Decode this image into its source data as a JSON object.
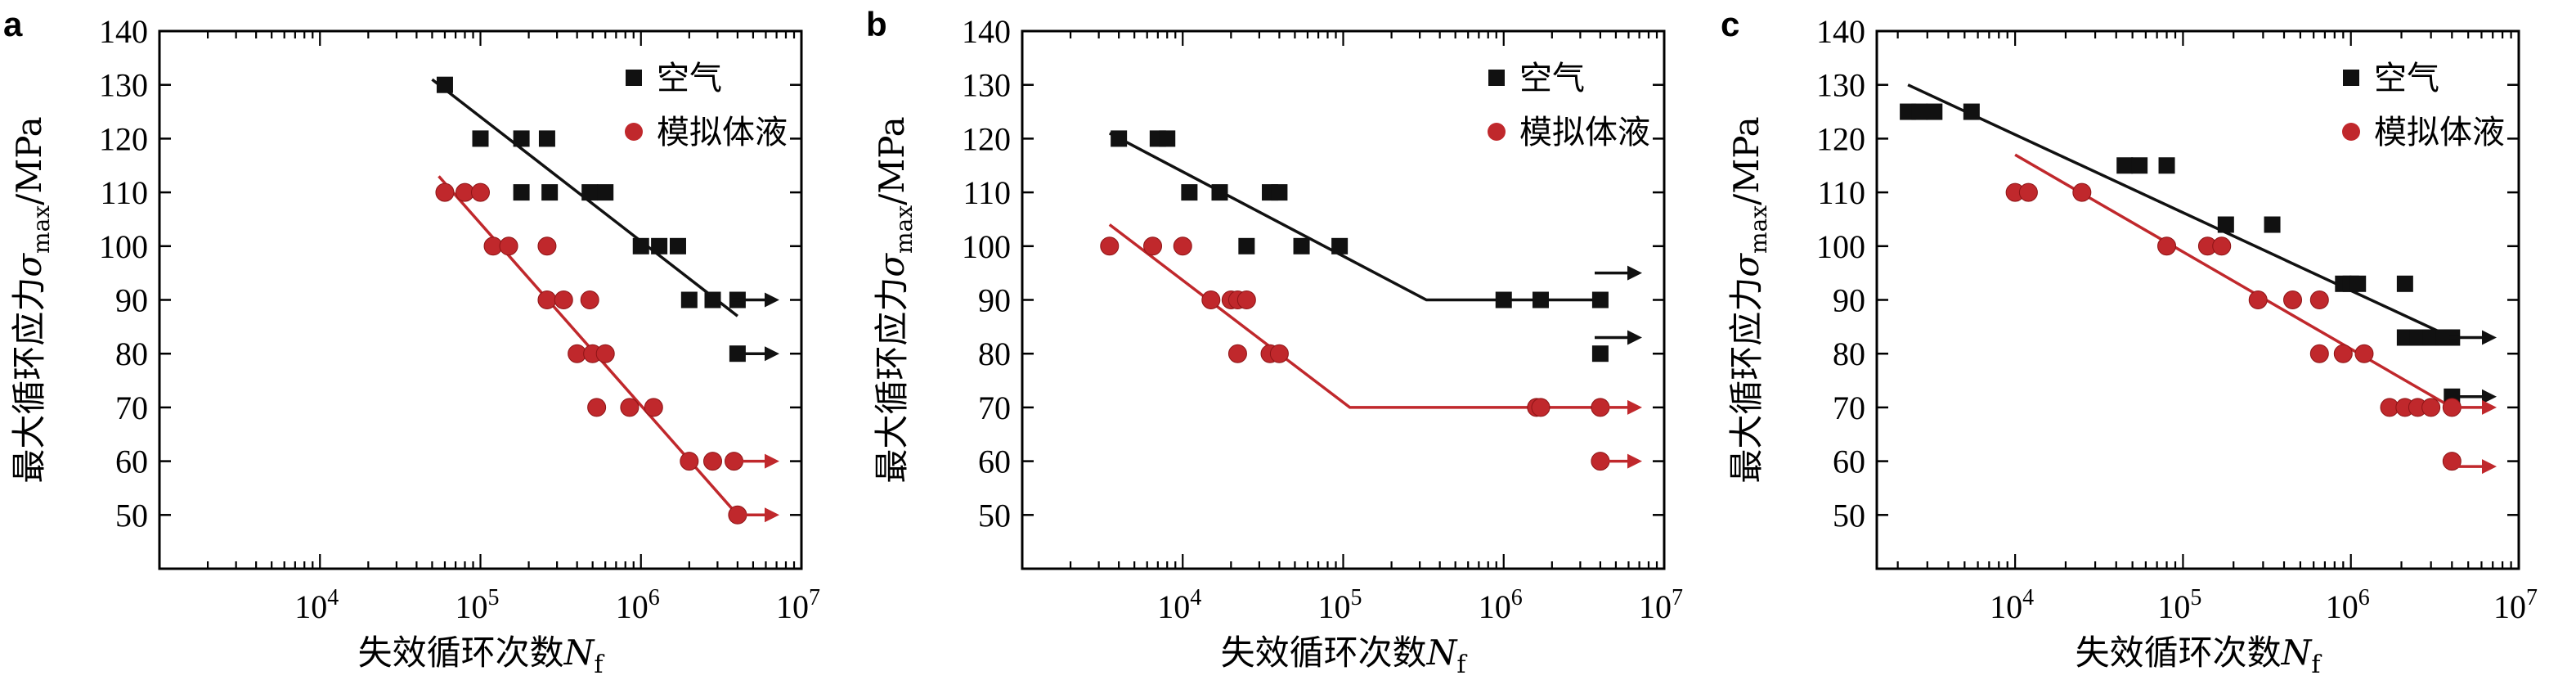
{
  "chart_data": [
    {
      "type": "scatter",
      "panel_label": "a",
      "xlabel_text": "失效循环次数",
      "xlabel_symbol": "N",
      "xlabel_sub": "f",
      "ylabel_text": "最大循环应力",
      "ylabel_symbol": "σ",
      "ylabel_sub": "max",
      "ylabel_unit": "/MPa",
      "x_scale": "log",
      "xlim": [
        1000,
        10000000
      ],
      "ylim": [
        40,
        140
      ],
      "x_tick_labels": [
        "10",
        "10",
        "10",
        "10"
      ],
      "x_tick_exps": [
        "4",
        "5",
        "6",
        "7"
      ],
      "x_ticks": [
        10000,
        100000,
        1000000,
        10000000
      ],
      "y_ticks": [
        50,
        60,
        70,
        80,
        90,
        100,
        110,
        120,
        130,
        140
      ],
      "y_tick_labels": [
        "50",
        "60",
        "70",
        "80",
        "90",
        "100",
        "110",
        "120",
        "130",
        "140"
      ],
      "legend_position": "top-right",
      "series": [
        {
          "name": "空气",
          "color": "#111111",
          "marker": "square",
          "points": [
            [
              60000,
              130
            ],
            [
              100000,
              120
            ],
            [
              180000,
              120
            ],
            [
              260000,
              120
            ],
            [
              180000,
              110
            ],
            [
              270000,
              110
            ],
            [
              480000,
              110
            ],
            [
              600000,
              110
            ],
            [
              1000000,
              100
            ],
            [
              1300000,
              100
            ],
            [
              1700000,
              100
            ],
            [
              2000000,
              90
            ],
            [
              2800000,
              90
            ],
            [
              4000000,
              90
            ],
            [
              4000000,
              80
            ]
          ],
          "fit": [
            [
              50000,
              131
            ],
            [
              4000000,
              87
            ]
          ],
          "runouts": [
            90,
            80
          ]
        },
        {
          "name": "模拟体液",
          "color": "#c0282c",
          "marker": "circle",
          "points": [
            [
              60000,
              110
            ],
            [
              80000,
              110
            ],
            [
              100000,
              110
            ],
            [
              120000,
              100
            ],
            [
              150000,
              100
            ],
            [
              260000,
              100
            ],
            [
              260000,
              90
            ],
            [
              330000,
              90
            ],
            [
              480000,
              90
            ],
            [
              400000,
              80
            ],
            [
              500000,
              80
            ],
            [
              600000,
              80
            ],
            [
              530000,
              70
            ],
            [
              850000,
              70
            ],
            [
              1200000,
              70
            ],
            [
              2000000,
              60
            ],
            [
              2800000,
              60
            ],
            [
              3800000,
              60
            ],
            [
              4000000,
              50
            ]
          ],
          "fit": [
            [
              55000,
              113
            ],
            [
              4000000,
              50
            ]
          ],
          "runouts": [
            60,
            50
          ]
        }
      ]
    },
    {
      "type": "scatter",
      "panel_label": "b",
      "xlabel_text": "失效循环次数",
      "xlabel_symbol": "N",
      "xlabel_sub": "f",
      "ylabel_text": "最大循环应力",
      "ylabel_symbol": "σ",
      "ylabel_sub": "max",
      "ylabel_unit": "/MPa",
      "x_scale": "log",
      "xlim": [
        1000,
        10000000
      ],
      "ylim": [
        40,
        140
      ],
      "x_tick_labels": [
        "10",
        "10",
        "10",
        "10"
      ],
      "x_tick_exps": [
        "4",
        "5",
        "6",
        "7"
      ],
      "x_ticks": [
        10000,
        100000,
        1000000,
        10000000
      ],
      "y_ticks": [
        50,
        60,
        70,
        80,
        90,
        100,
        110,
        120,
        130,
        140
      ],
      "y_tick_labels": [
        "50",
        "60",
        "70",
        "80",
        "90",
        "100",
        "110",
        "120",
        "130",
        "140"
      ],
      "legend_position": "top-right",
      "series": [
        {
          "name": "空气",
          "color": "#111111",
          "marker": "square",
          "points": [
            [
              4000,
              120
            ],
            [
              7000,
              120
            ],
            [
              8000,
              120
            ],
            [
              11000,
              110
            ],
            [
              17000,
              110
            ],
            [
              35000,
              110
            ],
            [
              40000,
              110
            ],
            [
              25000,
              100
            ],
            [
              55000,
              100
            ],
            [
              95000,
              100
            ],
            [
              1000000,
              90
            ],
            [
              1700000,
              90
            ],
            [
              4000000,
              90
            ],
            [
              4000000,
              80
            ]
          ],
          "fit": [
            [
              3500,
              121
            ],
            [
              330000,
              90
            ],
            [
              4000000,
              90
            ]
          ],
          "runouts": [
            95,
            83
          ]
        },
        {
          "name": "模拟体液",
          "color": "#c0282c",
          "marker": "circle",
          "points": [
            [
              3500,
              100
            ],
            [
              6500,
              100
            ],
            [
              10000,
              100
            ],
            [
              15000,
              90
            ],
            [
              20000,
              90
            ],
            [
              22000,
              90
            ],
            [
              25000,
              90
            ],
            [
              22000,
              80
            ],
            [
              35000,
              80
            ],
            [
              40000,
              80
            ],
            [
              1600000,
              70
            ],
            [
              1700000,
              70
            ],
            [
              4000000,
              70
            ],
            [
              4000000,
              60
            ]
          ],
          "fit": [
            [
              3500,
              104
            ],
            [
              110000,
              70
            ],
            [
              4000000,
              70
            ]
          ],
          "runouts": [
            70,
            60
          ]
        }
      ]
    },
    {
      "type": "scatter",
      "panel_label": "c",
      "xlabel_text": "失效循环次数",
      "xlabel_symbol": "N",
      "xlabel_sub": "f",
      "ylabel_text": "最大循环应力",
      "ylabel_symbol": "σ",
      "ylabel_sub": "max",
      "ylabel_unit": "/MPa",
      "x_scale": "log",
      "xlim": [
        1500,
        10000000
      ],
      "ylim": [
        40,
        140
      ],
      "x_tick_labels": [
        "10",
        "10",
        "10",
        "10"
      ],
      "x_tick_exps": [
        "4",
        "5",
        "6",
        "7"
      ],
      "x_ticks": [
        10000,
        100000,
        1000000,
        10000000
      ],
      "y_ticks": [
        50,
        60,
        70,
        80,
        90,
        100,
        110,
        120,
        130,
        140
      ],
      "y_tick_labels": [
        "50",
        "60",
        "70",
        "80",
        "90",
        "100",
        "110",
        "120",
        "130",
        "140"
      ],
      "legend_position": "top-right",
      "series": [
        {
          "name": "空气",
          "color": "#111111",
          "marker": "square",
          "points": [
            [
              2300,
              125
            ],
            [
              2700,
              125
            ],
            [
              3300,
              125
            ],
            [
              5500,
              125
            ],
            [
              45000,
              115
            ],
            [
              55000,
              115
            ],
            [
              80000,
              115
            ],
            [
              180000,
              104
            ],
            [
              340000,
              104
            ],
            [
              900000,
              93
            ],
            [
              1000000,
              93
            ],
            [
              1100000,
              93
            ],
            [
              2100000,
              93
            ],
            [
              2100000,
              83
            ],
            [
              2500000,
              83
            ],
            [
              3000000,
              83
            ],
            [
              3600000,
              83
            ],
            [
              4000000,
              83
            ],
            [
              4000000,
              72
            ]
          ],
          "fit": [
            [
              2300,
              130
            ],
            [
              4000000,
              83
            ]
          ],
          "runouts": [
            83,
            72
          ]
        },
        {
          "name": "模拟体液",
          "color": "#c0282c",
          "marker": "circle",
          "points": [
            [
              10000,
              110
            ],
            [
              12000,
              110
            ],
            [
              25000,
              110
            ],
            [
              80000,
              100
            ],
            [
              140000,
              100
            ],
            [
              170000,
              100
            ],
            [
              280000,
              90
            ],
            [
              450000,
              90
            ],
            [
              650000,
              90
            ],
            [
              650000,
              80
            ],
            [
              900000,
              80
            ],
            [
              1200000,
              80
            ],
            [
              1700000,
              70
            ],
            [
              2100000,
              70
            ],
            [
              2500000,
              70
            ],
            [
              3000000,
              70
            ],
            [
              4000000,
              70
            ],
            [
              4000000,
              60
            ]
          ],
          "fit": [
            [
              10000,
              117
            ],
            [
              4000000,
              70
            ]
          ],
          "runouts": [
            70,
            59
          ]
        }
      ]
    }
  ]
}
